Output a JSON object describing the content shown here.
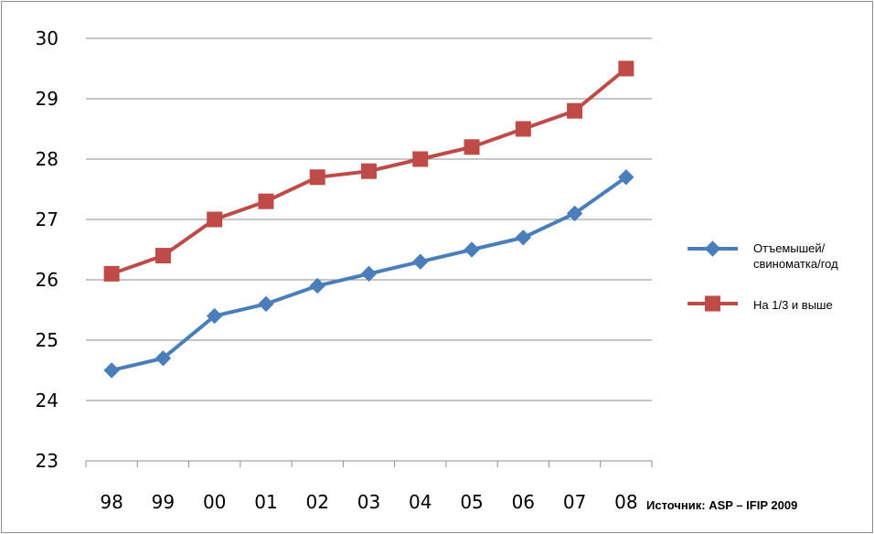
{
  "chart_data": {
    "type": "line",
    "categories": [
      "98",
      "99",
      "00",
      "01",
      "02",
      "03",
      "04",
      "05",
      "06",
      "07",
      "08"
    ],
    "ylim": [
      23,
      30
    ],
    "yticks": [
      "23",
      "24",
      "25",
      "26",
      "27",
      "28",
      "29",
      "30"
    ],
    "grid": true,
    "legend_position": "right",
    "series": [
      {
        "name_lines": [
          "Отъемышей/",
          "свиноматка/год"
        ],
        "color": "#4a7ebb",
        "marker": "diamond",
        "values": [
          24.5,
          24.7,
          25.4,
          25.6,
          25.9,
          26.1,
          26.3,
          26.5,
          26.7,
          27.1,
          27.7
        ]
      },
      {
        "name_lines": [
          "На 1/3 и выше"
        ],
        "color": "#be4b48",
        "marker": "square",
        "values": [
          26.1,
          26.4,
          27.0,
          27.3,
          27.7,
          27.8,
          28.0,
          28.2,
          28.5,
          28.8,
          29.5
        ]
      }
    ],
    "source": "Источник: ASP – IFIP 2009"
  }
}
